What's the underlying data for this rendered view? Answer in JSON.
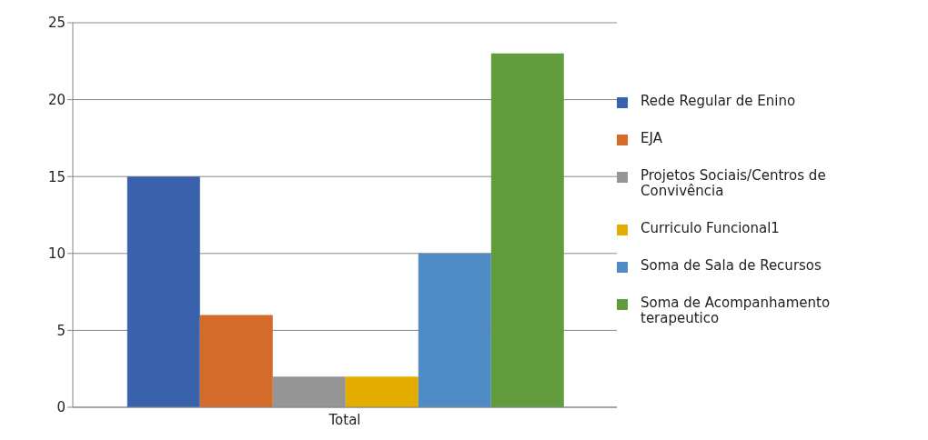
{
  "chart_data": {
    "type": "bar",
    "categories": [
      "Total"
    ],
    "series": [
      {
        "name": "Rede Regular de Enino",
        "color": "#3a62ac",
        "values": [
          15
        ]
      },
      {
        "name": "EJA",
        "color": "#d46b2a",
        "values": [
          6
        ]
      },
      {
        "name": "Projetos Sociais/Centros de Convivência",
        "color": "#959595",
        "values": [
          2
        ]
      },
      {
        "name": "Curriculo Funcional1",
        "color": "#e5ad00",
        "values": [
          2
        ]
      },
      {
        "name": "Soma de Sala de Recursos",
        "color": "#4f8bc4",
        "values": [
          10
        ]
      },
      {
        "name": "Soma de Acompanhamento terapeutico",
        "color": "#629c3e",
        "values": [
          23
        ]
      }
    ],
    "ylim": [
      0,
      25
    ],
    "yticks": [
      0,
      5,
      10,
      15,
      20,
      25
    ],
    "grid": "y",
    "legend": "right"
  }
}
